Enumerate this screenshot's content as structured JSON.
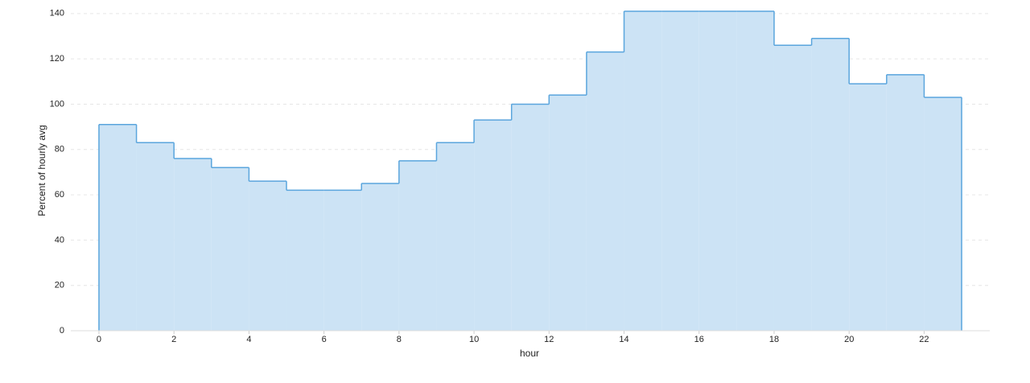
{
  "chart_data": {
    "type": "step-area",
    "x_label": "hour",
    "y_label": "Percent of hourly avg",
    "x": [
      0,
      1,
      2,
      3,
      4,
      5,
      6,
      7,
      8,
      9,
      10,
      11,
      12,
      13,
      14,
      15,
      16,
      17,
      18,
      19,
      20,
      21,
      22,
      23
    ],
    "values": [
      91,
      83,
      76,
      72,
      66,
      62,
      62,
      65,
      75,
      83,
      93,
      100,
      104,
      123,
      141,
      141,
      141,
      141,
      126,
      129,
      109,
      113,
      103,
      103
    ],
    "color": "#5aa5dd",
    "fill": "#cce3f5",
    "xlim": [
      -0.75,
      23.75
    ],
    "xticks": [
      0,
      2,
      4,
      6,
      8,
      10,
      12,
      14,
      16,
      18,
      20,
      22
    ],
    "ylim": [
      0,
      141
    ],
    "yticks": [
      0,
      20,
      40,
      60,
      80,
      100,
      120,
      140
    ],
    "grid": true
  }
}
